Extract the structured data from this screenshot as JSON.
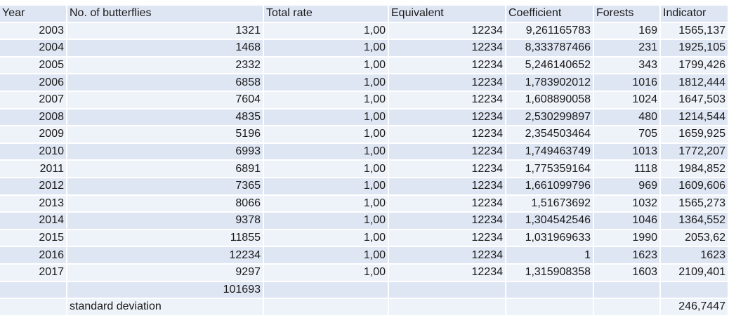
{
  "headers": [
    "Year",
    "No. of butterflies",
    "Total rate",
    "Equivalent",
    "Coefficient",
    "Forests",
    "Indicator"
  ],
  "rows": [
    [
      "2003",
      "1321",
      "1,00",
      "12234",
      "9,261165783",
      "169",
      "1565,137"
    ],
    [
      "2004",
      "1468",
      "1,00",
      "12234",
      "8,333787466",
      "231",
      "1925,105"
    ],
    [
      "2005",
      "2332",
      "1,00",
      "12234",
      "5,246140652",
      "343",
      "1799,426"
    ],
    [
      "2006",
      "6858",
      "1,00",
      "12234",
      "1,783902012",
      "1016",
      "1812,444"
    ],
    [
      "2007",
      "7604",
      "1,00",
      "12234",
      "1,608890058",
      "1024",
      "1647,503"
    ],
    [
      "2008",
      "4835",
      "1,00",
      "12234",
      "2,530299897",
      "480",
      "1214,544"
    ],
    [
      "2009",
      "5196",
      "1,00",
      "12234",
      "2,354503464",
      "705",
      "1659,925"
    ],
    [
      "2010",
      "6993",
      "1,00",
      "12234",
      "1,749463749",
      "1013",
      "1772,207"
    ],
    [
      "2011",
      "6891",
      "1,00",
      "12234",
      "1,775359164",
      "1118",
      "1984,852"
    ],
    [
      "2012",
      "7365",
      "1,00",
      "12234",
      "1,661099796",
      "969",
      "1609,606"
    ],
    [
      "2013",
      "8066",
      "1,00",
      "12234",
      "1,51673692",
      "1032",
      "1565,273"
    ],
    [
      "2014",
      "9378",
      "1,00",
      "12234",
      "1,304542546",
      "1046",
      "1364,552"
    ],
    [
      "2015",
      "11855",
      "1,00",
      "12234",
      "1,031969633",
      "1990",
      "2053,62"
    ],
    [
      "2016",
      "12234",
      "1,00",
      "12234",
      "1",
      "1623",
      "1623"
    ],
    [
      "2017",
      "9297",
      "1,00",
      "12234",
      "1,315908358",
      "1603",
      "2109,401"
    ]
  ],
  "total_row": {
    "butterflies_total": "101693"
  },
  "stddev_row": {
    "label": "standard deviation",
    "value": "246,7447"
  }
}
